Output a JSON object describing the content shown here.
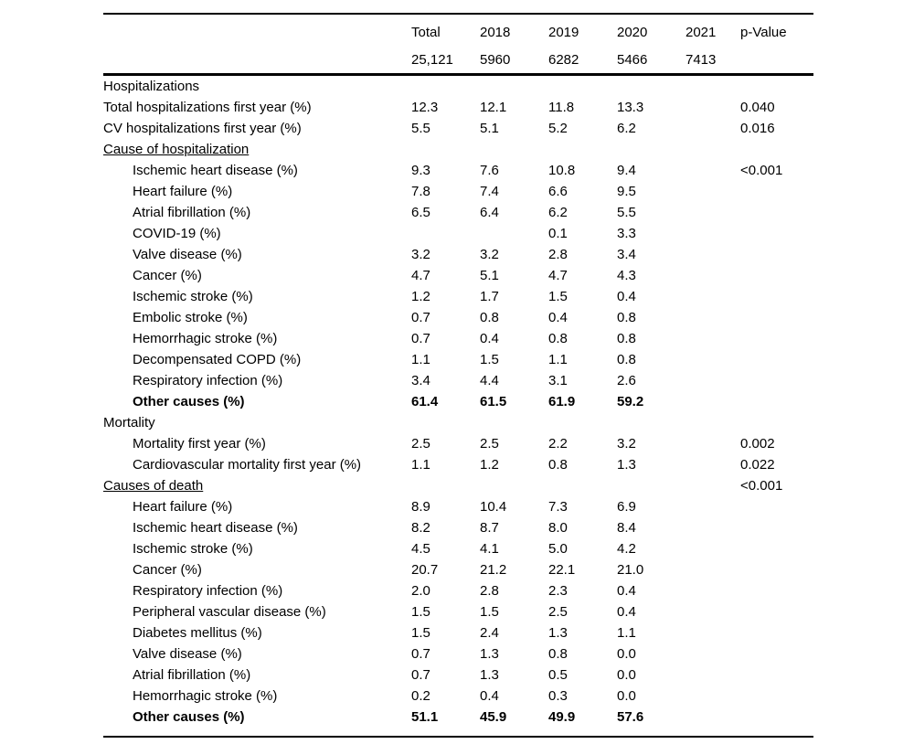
{
  "colors": {
    "background": "#ffffff",
    "text": "#000000",
    "rule": "#000000"
  },
  "table": {
    "columns": [
      {
        "key": "label",
        "header": "",
        "subheader": ""
      },
      {
        "key": "total",
        "header": "Total",
        "subheader": "25,121"
      },
      {
        "key": "y2018",
        "header": "2018",
        "subheader": "5960"
      },
      {
        "key": "y2019",
        "header": "2019",
        "subheader": "6282"
      },
      {
        "key": "y2020",
        "header": "2020",
        "subheader": "5466"
      },
      {
        "key": "y2021",
        "header": "2021",
        "subheader": "7413"
      },
      {
        "key": "pvalue",
        "header": "p-Value",
        "subheader": ""
      }
    ],
    "rows": [
      {
        "label": "Hospitalizations",
        "indent": 0,
        "bold": false,
        "underline": false,
        "values": [
          "",
          "",
          "",
          "",
          "",
          ""
        ]
      },
      {
        "label": "Total hospitalizations first year (%)",
        "indent": 0,
        "bold": false,
        "underline": false,
        "values": [
          "12.3",
          "12.1",
          "11.8",
          "13.3",
          "",
          "0.040"
        ]
      },
      {
        "label": "CV hospitalizations first year (%)",
        "indent": 0,
        "bold": false,
        "underline": false,
        "values": [
          "5.5",
          "5.1",
          "5.2",
          "6.2",
          "",
          "0.016"
        ]
      },
      {
        "label": "Cause of hospitalization",
        "indent": 0,
        "bold": false,
        "underline": true,
        "values": [
          "",
          "",
          "",
          "",
          "",
          ""
        ]
      },
      {
        "label": "Ischemic heart disease (%)",
        "indent": 1,
        "bold": false,
        "underline": false,
        "values": [
          "9.3",
          "7.6",
          "10.8",
          "9.4",
          "",
          "<0.001"
        ]
      },
      {
        "label": "Heart failure (%)",
        "indent": 1,
        "bold": false,
        "underline": false,
        "values": [
          "7.8",
          "7.4",
          "6.6",
          "9.5",
          "",
          ""
        ]
      },
      {
        "label": "Atrial fibrillation (%)",
        "indent": 1,
        "bold": false,
        "underline": false,
        "values": [
          "6.5",
          "6.4",
          "6.2",
          "5.5",
          "",
          ""
        ]
      },
      {
        "label": "COVID-19 (%)",
        "indent": 1,
        "bold": false,
        "underline": false,
        "values": [
          "",
          "",
          "0.1",
          "3.3",
          "",
          ""
        ]
      },
      {
        "label": "Valve disease (%)",
        "indent": 1,
        "bold": false,
        "underline": false,
        "values": [
          "3.2",
          "3.2",
          "2.8",
          "3.4",
          "",
          ""
        ]
      },
      {
        "label": "Cancer (%)",
        "indent": 1,
        "bold": false,
        "underline": false,
        "values": [
          "4.7",
          "5.1",
          "4.7",
          "4.3",
          "",
          ""
        ]
      },
      {
        "label": "Ischemic stroke (%)",
        "indent": 1,
        "bold": false,
        "underline": false,
        "values": [
          "1.2",
          "1.7",
          "1.5",
          "0.4",
          "",
          ""
        ]
      },
      {
        "label": "Embolic stroke (%)",
        "indent": 1,
        "bold": false,
        "underline": false,
        "values": [
          "0.7",
          "0.8",
          "0.4",
          "0.8",
          "",
          ""
        ]
      },
      {
        "label": "Hemorrhagic stroke (%)",
        "indent": 1,
        "bold": false,
        "underline": false,
        "values": [
          "0.7",
          "0.4",
          "0.8",
          "0.8",
          "",
          ""
        ]
      },
      {
        "label": "Decompensated COPD (%)",
        "indent": 1,
        "bold": false,
        "underline": false,
        "values": [
          "1.1",
          "1.5",
          "1.1",
          "0.8",
          "",
          ""
        ]
      },
      {
        "label": "Respiratory infection (%)",
        "indent": 1,
        "bold": false,
        "underline": false,
        "values": [
          "3.4",
          "4.4",
          "3.1",
          "2.6",
          "",
          ""
        ]
      },
      {
        "label": "Other causes (%)",
        "indent": 1,
        "bold": true,
        "underline": false,
        "values": [
          "61.4",
          "61.5",
          "61.9",
          "59.2",
          "",
          ""
        ]
      },
      {
        "label": "Mortality",
        "indent": 0,
        "bold": false,
        "underline": false,
        "values": [
          "",
          "",
          "",
          "",
          "",
          ""
        ]
      },
      {
        "label": "Mortality first year (%)",
        "indent": 1,
        "bold": false,
        "underline": false,
        "values": [
          "2.5",
          "2.5",
          "2.2",
          "3.2",
          "",
          "0.002"
        ]
      },
      {
        "label": "Cardiovascular mortality first year (%)",
        "indent": 1,
        "bold": false,
        "underline": false,
        "values": [
          "1.1",
          "1.2",
          "0.8",
          "1.3",
          "",
          "0.022"
        ]
      },
      {
        "label": "Causes of death",
        "indent": 0,
        "bold": false,
        "underline": true,
        "values": [
          "",
          "",
          "",
          "",
          "",
          "<0.001"
        ]
      },
      {
        "label": "Heart failure (%)",
        "indent": 1,
        "bold": false,
        "underline": false,
        "values": [
          "8.9",
          "10.4",
          "7.3",
          "6.9",
          "",
          ""
        ]
      },
      {
        "label": "Ischemic heart disease (%)",
        "indent": 1,
        "bold": false,
        "underline": false,
        "values": [
          "8.2",
          "8.7",
          "8.0",
          "8.4",
          "",
          ""
        ]
      },
      {
        "label": "Ischemic stroke (%)",
        "indent": 1,
        "bold": false,
        "underline": false,
        "values": [
          "4.5",
          "4.1",
          "5.0",
          "4.2",
          "",
          ""
        ]
      },
      {
        "label": "Cancer (%)",
        "indent": 1,
        "bold": false,
        "underline": false,
        "values": [
          "20.7",
          "21.2",
          "22.1",
          "21.0",
          "",
          ""
        ]
      },
      {
        "label": "Respiratory infection (%)",
        "indent": 1,
        "bold": false,
        "underline": false,
        "values": [
          "2.0",
          "2.8",
          "2.3",
          "0.4",
          "",
          ""
        ]
      },
      {
        "label": "Peripheral vascular disease (%)",
        "indent": 1,
        "bold": false,
        "underline": false,
        "values": [
          "1.5",
          "1.5",
          "2.5",
          "0.4",
          "",
          ""
        ]
      },
      {
        "label": "Diabetes mellitus (%)",
        "indent": 1,
        "bold": false,
        "underline": false,
        "values": [
          "1.5",
          "2.4",
          "1.3",
          "1.1",
          "",
          ""
        ]
      },
      {
        "label": "Valve disease (%)",
        "indent": 1,
        "bold": false,
        "underline": false,
        "values": [
          "0.7",
          "1.3",
          "0.8",
          "0.0",
          "",
          ""
        ]
      },
      {
        "label": "Atrial fibrillation (%)",
        "indent": 1,
        "bold": false,
        "underline": false,
        "values": [
          "0.7",
          "1.3",
          "0.5",
          "0.0",
          "",
          ""
        ]
      },
      {
        "label": "Hemorrhagic stroke (%)",
        "indent": 1,
        "bold": false,
        "underline": false,
        "values": [
          "0.2",
          "0.4",
          "0.3",
          "0.0",
          "",
          ""
        ]
      },
      {
        "label": "Other causes (%)",
        "indent": 1,
        "bold": true,
        "underline": false,
        "values": [
          "51.1",
          "45.9",
          "49.9",
          "57.6",
          "",
          ""
        ]
      }
    ]
  }
}
